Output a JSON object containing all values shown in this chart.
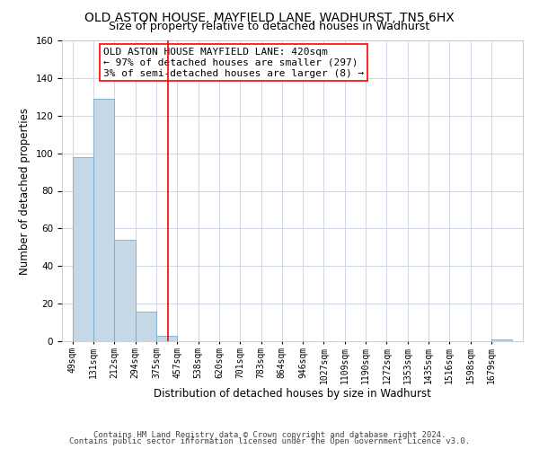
{
  "title": "OLD ASTON HOUSE, MAYFIELD LANE, WADHURST, TN5 6HX",
  "subtitle": "Size of property relative to detached houses in Wadhurst",
  "xlabel": "Distribution of detached houses by size in Wadhurst",
  "ylabel": "Number of detached properties",
  "bar_edges": [
    49,
    131,
    212,
    294,
    375,
    457,
    538,
    620,
    701,
    783,
    864,
    946,
    1027,
    1109,
    1190,
    1272,
    1353,
    1435,
    1516,
    1598,
    1679
  ],
  "bar_heights": [
    98,
    129,
    54,
    16,
    3,
    0,
    0,
    0,
    0,
    0,
    0,
    0,
    0,
    0,
    0,
    0,
    0,
    0,
    0,
    0,
    1
  ],
  "bar_color": "#c5d8e8",
  "bar_edgecolor": "#7aaac8",
  "vline_x": 420,
  "vline_color": "red",
  "annotation_text": "OLD ASTON HOUSE MAYFIELD LANE: 420sqm\n← 97% of detached houses are smaller (297)\n3% of semi-detached houses are larger (8) →",
  "ylim": [
    0,
    160
  ],
  "yticks": [
    0,
    20,
    40,
    60,
    80,
    100,
    120,
    140,
    160
  ],
  "tick_labels": [
    "49sqm",
    "131sqm",
    "212sqm",
    "294sqm",
    "375sqm",
    "457sqm",
    "538sqm",
    "620sqm",
    "701sqm",
    "783sqm",
    "864sqm",
    "946sqm",
    "1027sqm",
    "1109sqm",
    "1190sqm",
    "1272sqm",
    "1353sqm",
    "1435sqm",
    "1516sqm",
    "1598sqm",
    "1679sqm"
  ],
  "footer_line1": "Contains HM Land Registry data © Crown copyright and database right 2024.",
  "footer_line2": "Contains public sector information licensed under the Open Government Licence v3.0.",
  "bg_color": "#ffffff",
  "grid_color": "#d0d8e8",
  "title_fontsize": 10,
  "subtitle_fontsize": 9,
  "axis_label_fontsize": 8.5,
  "tick_fontsize": 7,
  "annotation_fontsize": 8,
  "footer_fontsize": 6.5
}
